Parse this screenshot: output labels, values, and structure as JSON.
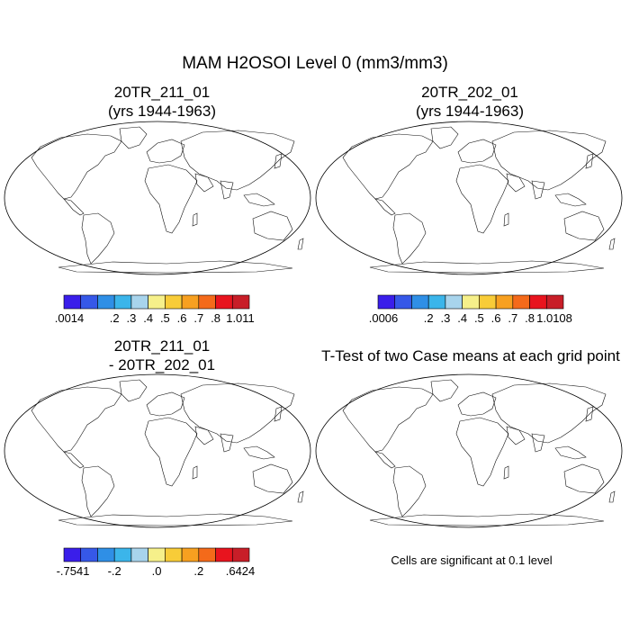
{
  "title": "MAM H2OSOI Level 0 (mm3/mm3)",
  "panels": [
    {
      "id": "case1",
      "title_line1": "20TR_211_01",
      "title_line2": "(yrs 1944-1963)",
      "colorbar": {
        "colors": [
          "#3a1eea",
          "#3658e8",
          "#2f8fe6",
          "#3bb5ea",
          "#a8d4ec",
          "#f6f08a",
          "#f8cc38",
          "#f7a020",
          "#f46a1a",
          "#e8141e",
          "#c81e28"
        ],
        "labels": [
          ".0014",
          ".2",
          ".3",
          ".4",
          ".5",
          ".6",
          ".7",
          ".8",
          "1.011"
        ]
      }
    },
    {
      "id": "case2",
      "title_line1": "20TR_202_01",
      "title_line2": "(yrs 1944-1963)",
      "colorbar": {
        "colors": [
          "#3a1eea",
          "#3658e8",
          "#2f8fe6",
          "#3bb5ea",
          "#a8d4ec",
          "#f6f08a",
          "#f8cc38",
          "#f7a020",
          "#f46a1a",
          "#e8141e",
          "#c81e28"
        ],
        "labels": [
          ".0006",
          ".2",
          ".3",
          ".4",
          ".5",
          ".6",
          ".7",
          ".8",
          "1.0108"
        ]
      }
    },
    {
      "id": "difference",
      "title_line1": "20TR_211_01",
      "title_line2": "- 20TR_202_01",
      "colorbar": {
        "colors": [
          "#3a1eea",
          "#3658e8",
          "#2f8fe6",
          "#3bb5ea",
          "#a8d4ec",
          "#f6f08a",
          "#f8cc38",
          "#f7a020",
          "#f46a1a",
          "#e8141e",
          "#c81e28"
        ],
        "labels": [
          "-.7541",
          "-.2",
          ".0",
          ".2",
          ".6424"
        ]
      }
    },
    {
      "id": "ttest",
      "title_line1": "T-Test of two Case means at each grid point",
      "significance_color": "#ee1111",
      "note": "Cells are significant at 0.1 level"
    }
  ]
}
